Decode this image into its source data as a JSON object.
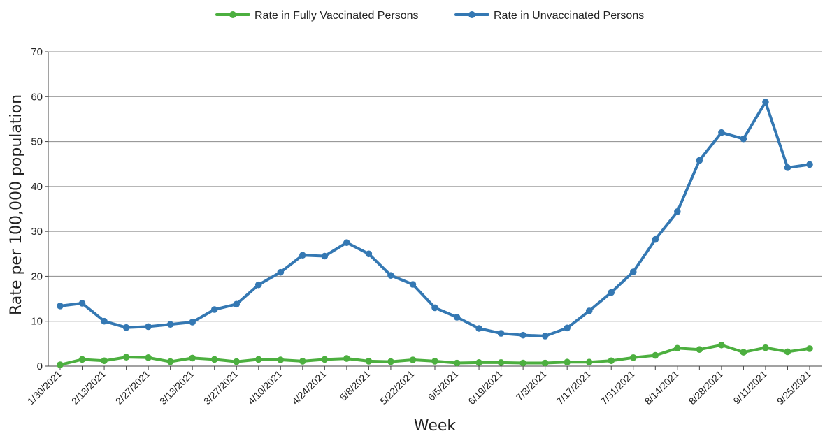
{
  "chart_data": {
    "type": "line",
    "title": "",
    "xlabel": "Week",
    "ylabel": "Rate per 100,000 population",
    "ylim": [
      0,
      70
    ],
    "yticks": [
      0,
      10,
      20,
      30,
      40,
      50,
      60,
      70
    ],
    "grid": true,
    "legend_position": "top-center",
    "x": [
      "1/30/2021",
      "2/6/2021",
      "2/13/2021",
      "2/20/2021",
      "2/27/2021",
      "3/6/2021",
      "3/13/2021",
      "3/20/2021",
      "3/27/2021",
      "4/3/2021",
      "4/10/2021",
      "4/17/2021",
      "4/24/2021",
      "5/1/2021",
      "5/8/2021",
      "5/15/2021",
      "5/22/2021",
      "5/29/2021",
      "6/5/2021",
      "6/12/2021",
      "6/19/2021",
      "6/26/2021",
      "7/3/2021",
      "7/10/2021",
      "7/17/2021",
      "7/24/2021",
      "7/31/2021",
      "8/7/2021",
      "8/14/2021",
      "8/21/2021",
      "8/28/2021",
      "9/4/2021",
      "9/11/2021",
      "9/18/2021",
      "9/25/2021"
    ],
    "x_tick_labels": [
      "1/30/2021",
      "2/13/2021",
      "2/27/2021",
      "3/13/2021",
      "3/27/2021",
      "4/10/2021",
      "4/24/2021",
      "5/8/2021",
      "5/22/2021",
      "6/5/2021",
      "6/19/2021",
      "7/3/2021",
      "7/17/2021",
      "7/31/2021",
      "8/14/2021",
      "8/28/2021",
      "9/11/2021",
      "9/25/2021"
    ],
    "series": [
      {
        "name": "Rate in Fully Vaccinated Persons",
        "color": "#4caf3f",
        "values": [
          0.3,
          1.5,
          1.2,
          2.0,
          1.9,
          1.0,
          1.8,
          1.5,
          1.0,
          1.5,
          1.4,
          1.1,
          1.5,
          1.7,
          1.1,
          1.0,
          1.4,
          1.1,
          0.7,
          0.8,
          0.8,
          0.7,
          0.7,
          0.9,
          0.9,
          1.2,
          1.9,
          2.4,
          4.0,
          3.7,
          4.7,
          3.1,
          4.1,
          3.2,
          3.9
        ]
      },
      {
        "name": "Rate in Unvaccinated Persons",
        "color": "#3478b3",
        "values": [
          13.4,
          14.0,
          10.0,
          8.6,
          8.8,
          9.3,
          9.8,
          12.6,
          13.8,
          18.1,
          20.9,
          24.7,
          24.5,
          27.5,
          25.0,
          20.2,
          18.2,
          13.0,
          10.9,
          8.4,
          7.3,
          6.9,
          6.7,
          8.5,
          12.3,
          16.4,
          21.0,
          28.2,
          34.4,
          45.8,
          52.0,
          50.6,
          58.8,
          44.2,
          44.9
        ]
      }
    ]
  }
}
